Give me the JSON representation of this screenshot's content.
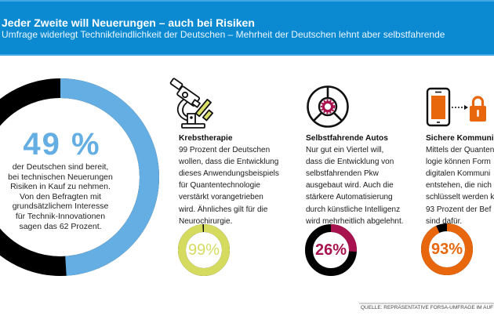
{
  "header": {
    "title": "Jeder Zweite will Neuerungen – auch bei Risiken",
    "subtitle": "Umfrage widerlegt Technikfeindlichkeit der Deutschen – Mehrheit der Deutschen lehnt aber selbstfahrende"
  },
  "hero": {
    "lines": [
      "der Deutschen sind bereit,",
      "bei technischen Neuerungen",
      "Risiken in Kauf zu nehmen.",
      "Von den Befragten mit",
      "grundsätzlichem Interesse",
      "für Technik-Innovationen",
      "sagen das 62 Prozent."
    ]
  },
  "columns": [
    {
      "icon": "microscope-icon",
      "heading": "Krebstherapie",
      "lines": [
        "99 Prozent der Deutschen",
        "wollen, dass die Entwicklung",
        "dieses Anwendungsbeispiels",
        "für Quantentechnologie",
        "verstärkt vorangetrieben",
        "wird. Ähnliches gilt für die",
        "Neurochirurgie."
      ]
    },
    {
      "icon": "steering-wheel-icon",
      "heading": "Selbstfahrende Autos",
      "lines": [
        "Nur gut ein Viertel will,",
        "dass die Entwicklung von",
        "selbstfahrenden Pkw",
        "ausgebaut wird. Auch die",
        "stärkere Automatisierung",
        "durch künstliche Intelligenz",
        "wird mehrheitlich abgelehnt."
      ]
    },
    {
      "icon": "smartphone-lock-icon",
      "heading": "Sichere Kommuni",
      "lines": [
        "Mittels der Quanten",
        "logie können Form",
        "digitalen Kommuni",
        "entstehen, die nich",
        "schlüsselt werden k",
        "93 Prozent der Bef",
        "sind dafür."
      ]
    }
  ],
  "source": "QUELLE: REPRÄSENTATIVE FORSA-UMFRAGE IM AUF",
  "colors": {
    "header_blue": "#0b8ad2",
    "light_blue": "#64aee3",
    "yellow_green": "#d5db5f",
    "crimson": "#a8134f",
    "orange": "#e8670d",
    "black": "#000000"
  },
  "chart_data": [
    {
      "type": "pie",
      "variant": "donut",
      "label": "49 %",
      "values": [
        49,
        51
      ],
      "colors": [
        "#64aee3",
        "#000000"
      ]
    },
    {
      "type": "pie",
      "variant": "donut",
      "title": "Krebstherapie",
      "label": "99%",
      "values": [
        99,
        1
      ],
      "colors": [
        "#d5db5f",
        "#000000"
      ]
    },
    {
      "type": "pie",
      "variant": "donut",
      "title": "Selbstfahrende Autos",
      "label": "26%",
      "values": [
        26,
        74
      ],
      "colors": [
        "#a8134f",
        "#000000"
      ]
    },
    {
      "type": "pie",
      "variant": "donut",
      "title": "Sichere Kommuni",
      "label": "93%",
      "values": [
        93,
        7
      ],
      "colors": [
        "#e8670d",
        "#000000"
      ]
    }
  ]
}
